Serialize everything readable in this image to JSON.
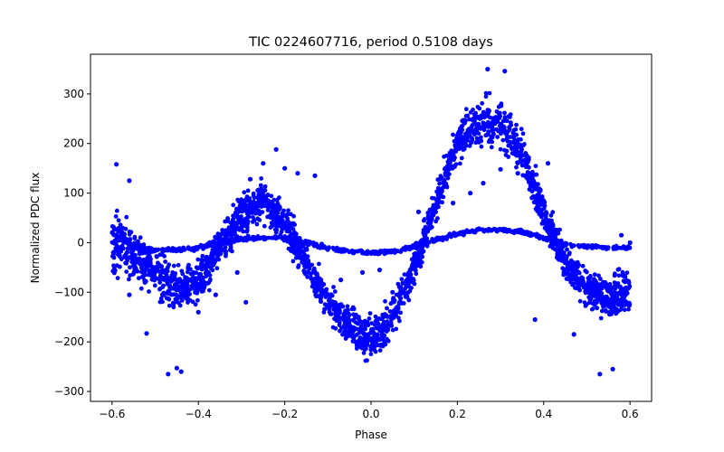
{
  "chart_data": {
    "type": "scatter",
    "title": "TIC 0224607716, period 0.5108 days",
    "xlabel": "Phase",
    "ylabel": "Normalized PDC flux",
    "xlim": [
      -0.65,
      0.65
    ],
    "ylim": [
      -320,
      380
    ],
    "xticks": [
      -0.6,
      -0.4,
      -0.2,
      0.0,
      0.2,
      0.4,
      0.6
    ],
    "xtick_labels": [
      "−0.6",
      "−0.4",
      "−0.2",
      "0.0",
      "0.2",
      "0.4",
      "0.6"
    ],
    "yticks": [
      -300,
      -200,
      -100,
      0,
      100,
      200,
      300
    ],
    "ytick_labels": [
      "−300",
      "−200",
      "−100",
      "0",
      "100",
      "200",
      "300"
    ],
    "grid": false,
    "color": "#0000ff",
    "series": [
      {
        "x": [
          -0.6,
          -0.55,
          -0.5,
          -0.45,
          -0.4,
          -0.35,
          -0.3,
          -0.25,
          -0.2,
          -0.15,
          -0.1,
          -0.05,
          0.0,
          0.05,
          0.1,
          0.15,
          0.2,
          0.25,
          0.3,
          0.35,
          0.4,
          0.45,
          0.5,
          0.55,
          0.6
        ],
        "y": [
          5,
          -25,
          -60,
          -95,
          -85,
          -10,
          60,
          80,
          40,
          -40,
          -120,
          -170,
          -200,
          -150,
          -50,
          80,
          200,
          240,
          245,
          180,
          60,
          -40,
          -90,
          -110,
          -100
        ],
        "spread": [
          60,
          50,
          45,
          45,
          40,
          35,
          35,
          35,
          35,
          35,
          35,
          35,
          40,
          40,
          35,
          35,
          35,
          40,
          45,
          40,
          35,
          35,
          35,
          40,
          50
        ]
      },
      {
        "x": [
          -0.6,
          -0.55,
          -0.5,
          -0.45,
          -0.4,
          -0.35,
          -0.3,
          -0.25,
          -0.2,
          -0.15,
          -0.1,
          -0.05,
          0.0,
          0.05,
          0.1,
          0.15,
          0.2,
          0.25,
          0.3,
          0.35,
          0.4,
          0.45,
          0.5,
          0.55,
          0.6
        ],
        "y": [
          20,
          -10,
          -15,
          -15,
          -10,
          0,
          8,
          10,
          8,
          0,
          -10,
          -18,
          -20,
          -18,
          -8,
          5,
          18,
          25,
          26,
          22,
          10,
          -2,
          -8,
          -10,
          -10
        ],
        "spread": [
          6,
          4,
          4,
          4,
          4,
          4,
          4,
          4,
          4,
          4,
          4,
          4,
          4,
          4,
          4,
          4,
          4,
          4,
          4,
          4,
          4,
          4,
          4,
          4,
          4
        ]
      }
    ],
    "outliers": [
      [
        -0.59,
        158
      ],
      [
        -0.56,
        125
      ],
      [
        -0.56,
        -105
      ],
      [
        -0.52,
        -183
      ],
      [
        -0.47,
        -265
      ],
      [
        -0.45,
        -253
      ],
      [
        -0.44,
        -260
      ],
      [
        -0.4,
        -140
      ],
      [
        -0.36,
        -105
      ],
      [
        -0.31,
        -60
      ],
      [
        -0.29,
        -120
      ],
      [
        -0.28,
        128
      ],
      [
        -0.25,
        160
      ],
      [
        -0.22,
        188
      ],
      [
        -0.2,
        150
      ],
      [
        -0.17,
        140
      ],
      [
        -0.13,
        135
      ],
      [
        -0.07,
        -75
      ],
      [
        -0.02,
        -60
      ],
      [
        0.02,
        -55
      ],
      [
        0.05,
        -100
      ],
      [
        0.11,
        62
      ],
      [
        0.19,
        80
      ],
      [
        0.23,
        100
      ],
      [
        0.26,
        120
      ],
      [
        0.27,
        350
      ],
      [
        0.3,
        148
      ],
      [
        0.31,
        346
      ],
      [
        0.34,
        140
      ],
      [
        0.38,
        -155
      ],
      [
        0.41,
        160
      ],
      [
        0.47,
        -185
      ],
      [
        0.53,
        -265
      ],
      [
        0.56,
        -255
      ],
      [
        0.58,
        15
      ],
      [
        0.6,
        0
      ]
    ]
  }
}
